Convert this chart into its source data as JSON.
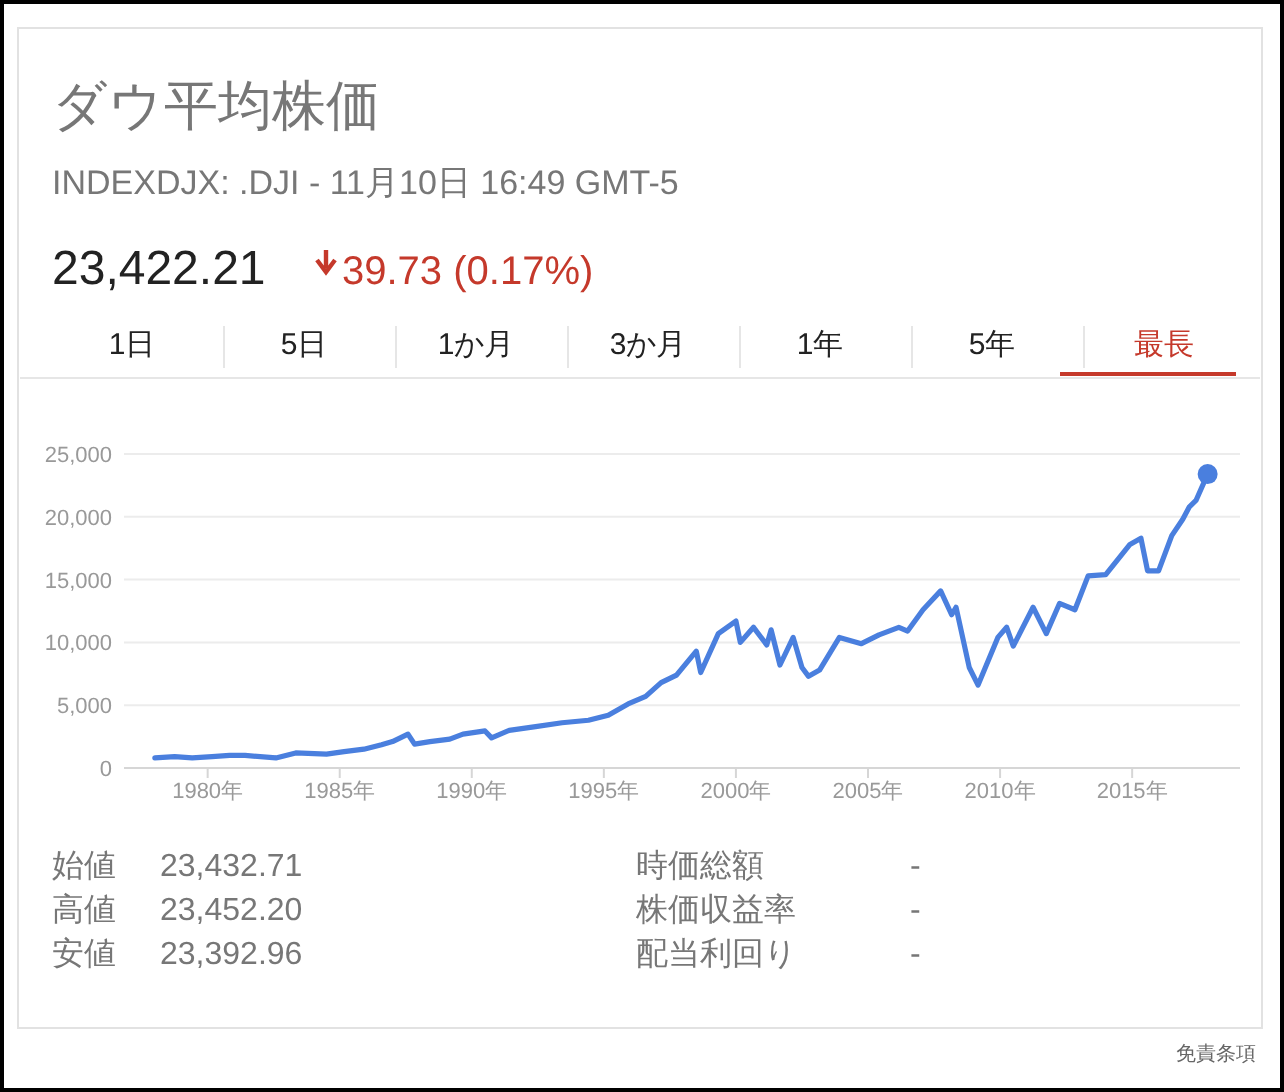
{
  "chart_data": {
    "type": "line",
    "title": "ダウ平均株価",
    "subtitle": "INDEXDJX: .DJI - 11月10日 16:49 GMT-5",
    "annotations": [
      "23,422.21",
      "39.73 (0.17%)",
      "1日",
      "5日",
      "1か月",
      "3か月",
      "1年",
      "5年",
      "最長",
      "始値",
      "23,432.71",
      "高値",
      "23,452.20",
      "安値",
      "23,392.96",
      "時価総額",
      "-",
      "株価収益率",
      "-",
      "配当利回り",
      "-",
      "免責条項"
    ],
    "x": [
      "1978-01",
      "1978-10",
      "1979-06",
      "1980-03",
      "1980-11",
      "1981-06",
      "1982-08",
      "1983-05",
      "1984-07",
      "1985-03",
      "1985-12",
      "1986-08",
      "1987-01",
      "1987-08",
      "1987-11",
      "1988-06",
      "1989-03",
      "1989-09",
      "1990-07",
      "1990-10",
      "1991-06",
      "1992-06",
      "1993-06",
      "1994-06",
      "1995-03",
      "1995-12",
      "1996-08",
      "1997-03",
      "1997-10",
      "1998-07",
      "1998-09",
      "1999-05",
      "2000-01",
      "2000-03",
      "2000-09",
      "2001-03",
      "2001-05",
      "2001-09",
      "2002-03",
      "2002-07",
      "2002-10",
      "2003-03",
      "2003-12",
      "2004-10",
      "2005-06",
      "2006-03",
      "2006-07",
      "2007-02",
      "2007-10",
      "2008-03",
      "2008-05",
      "2008-11",
      "2009-03",
      "2009-12",
      "2010-04",
      "2010-07",
      "2011-04",
      "2011-10",
      "2012-04",
      "2012-11",
      "2013-05",
      "2014-01",
      "2014-12",
      "2015-05",
      "2015-08",
      "2016-01",
      "2016-07",
      "2016-12",
      "2017-03",
      "2017-06",
      "2017-11-10"
    ],
    "series": [
      {
        "color": "#4a7fde",
        "values": [
          800,
          900,
          800,
          900,
          1000,
          1000,
          800,
          1200,
          1100,
          1300,
          1500,
          1850,
          2100,
          2700,
          1900,
          2100,
          2300,
          2700,
          2950,
          2400,
          3000,
          3300,
          3600,
          3800,
          4200,
          5100,
          5700,
          6800,
          7400,
          9300,
          7600,
          10700,
          11700,
          10000,
          11200,
          9800,
          11000,
          8200,
          10400,
          8000,
          7300,
          7800,
          10400,
          9900,
          10600,
          11200,
          10900,
          12600,
          14100,
          12200,
          12800,
          8000,
          6600,
          10400,
          11200,
          9700,
          12800,
          10700,
          13100,
          12600,
          15300,
          15400,
          17800,
          18300,
          15700,
          15700,
          18500,
          19800,
          20800,
          21300,
          23400
        ]
      },
      {
        "type": "scatter",
        "color": "#4a7fde",
        "x": [
          "2017-11-10"
        ],
        "values": [
          23400
        ],
        "marker": "circle"
      }
    ],
    "xlim": [
      "1976-11",
      "2019-02"
    ],
    "ylim": [
      0,
      25000
    ],
    "xticks": [
      {
        "value": "1980",
        "label": "1980年"
      },
      {
        "value": "1985",
        "label": "1985年"
      },
      {
        "value": "1990",
        "label": "1990年"
      },
      {
        "value": "1995",
        "label": "1995年"
      },
      {
        "value": "2000",
        "label": "2000年"
      },
      {
        "value": "2005",
        "label": "2005年"
      },
      {
        "value": "2010",
        "label": "2010年"
      },
      {
        "value": "2015",
        "label": "2015年"
      }
    ],
    "yticks": [
      {
        "value": 0,
        "label": "0"
      },
      {
        "value": 5000,
        "label": "5,000"
      },
      {
        "value": 10000,
        "label": "10,000"
      },
      {
        "value": 15000,
        "label": "15,000"
      },
      {
        "value": 20000,
        "label": "20,000"
      },
      {
        "value": 25000,
        "label": "25,000"
      }
    ],
    "grid": "y",
    "marker": "none"
  }
}
